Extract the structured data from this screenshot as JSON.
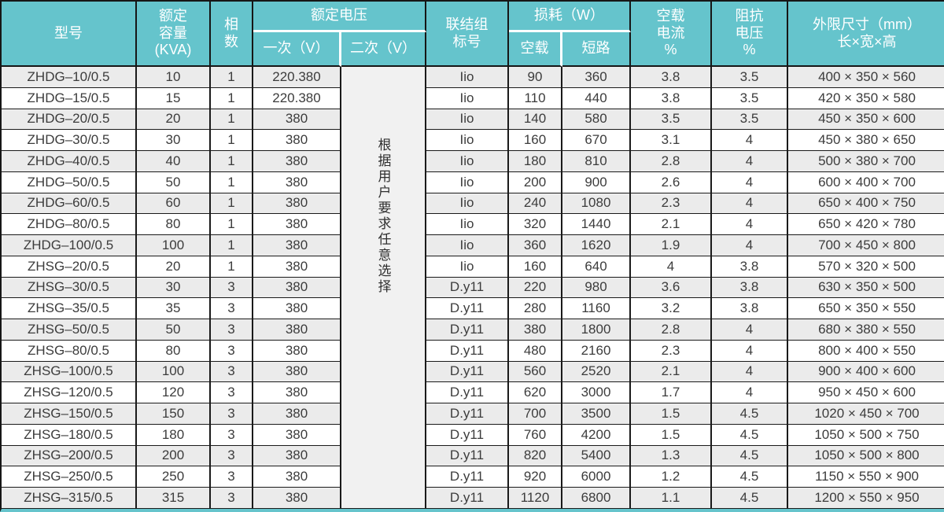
{
  "header": {
    "model": "型号",
    "capacity_lines": [
      "额定",
      "容量",
      "(KVA)"
    ],
    "phases_lines": [
      "相",
      "数"
    ],
    "voltage_group": "额定电压",
    "primary": "一次（V）",
    "secondary": "二次（V）",
    "connection_lines": [
      "联结组",
      "标号"
    ],
    "loss_group": "损耗（W）",
    "no_load": "空载",
    "short_circuit": "短路",
    "current_lines": [
      "空载",
      "电流",
      "%"
    ],
    "impedance_lines": [
      "阻抗",
      "电压",
      "%"
    ],
    "dims_lines": [
      "外限尺寸（mm）",
      "长×宽×高"
    ]
  },
  "secondary_note": "根据用户要求任意选择",
  "colors": {
    "header_bg": "#65c4cc",
    "header_text": "#ffffff",
    "row_alt_bg": "#ebebeb",
    "row_bg": "#ffffff",
    "border_dark": "#1a1a1a",
    "merged_bg": "#f1f1f1"
  },
  "rows": [
    [
      "ZHDG–10/0.5",
      "10",
      "1",
      "220.380",
      "Iio",
      "90",
      "360",
      "3.8",
      "3.5",
      "400 × 350 × 560"
    ],
    [
      "ZHDG–15/0.5",
      "15",
      "1",
      "220.380",
      "Iio",
      "110",
      "440",
      "3.8",
      "3.5",
      "420 × 350 × 580"
    ],
    [
      "ZHDG–20/0.5",
      "20",
      "1",
      "380",
      "Iio",
      "140",
      "580",
      "3.5",
      "3.5",
      "450 × 350 × 600"
    ],
    [
      "ZHDG–30/0.5",
      "30",
      "1",
      "380",
      "Iio",
      "160",
      "670",
      "3.1",
      "4",
      "450 × 380 × 650"
    ],
    [
      "ZHDG–40/0.5",
      "40",
      "1",
      "380",
      "Iio",
      "180",
      "810",
      "2.8",
      "4",
      "500 × 380 × 700"
    ],
    [
      "ZHDG–50/0.5",
      "50",
      "1",
      "380",
      "Iio",
      "200",
      "900",
      "2.6",
      "4",
      "600 × 400 × 700"
    ],
    [
      "ZHDG–60/0.5",
      "60",
      "1",
      "380",
      "Iio",
      "240",
      "1080",
      "2.3",
      "4",
      "650 × 400 × 750"
    ],
    [
      "ZHDG–80/0.5",
      "80",
      "1",
      "380",
      "Iio",
      "320",
      "1440",
      "2.1",
      "4",
      "650 × 420 × 780"
    ],
    [
      "ZHDG–100/0.5",
      "100",
      "1",
      "380",
      "Iio",
      "360",
      "1620",
      "1.9",
      "4",
      "700 × 450 × 800"
    ],
    [
      "ZHSG–20/0.5",
      "20",
      "1",
      "380",
      "Iio",
      "160",
      "640",
      "4",
      "3.8",
      "570 × 320 × 500"
    ],
    [
      "ZHSG–30/0.5",
      "30",
      "3",
      "380",
      "D.y11",
      "220",
      "980",
      "3.6",
      "3.8",
      "630 × 350 × 500"
    ],
    [
      "ZHSG–35/0.5",
      "35",
      "3",
      "380",
      "D.y11",
      "280",
      "1160",
      "3.2",
      "3.8",
      "650 × 350 × 550"
    ],
    [
      "ZHSG–50/0.5",
      "50",
      "3",
      "380",
      "D.y11",
      "380",
      "1800",
      "2.8",
      "4",
      "680 × 380 × 550"
    ],
    [
      "ZHSG–80/0.5",
      "80",
      "3",
      "380",
      "D.y11",
      "480",
      "2160",
      "2.3",
      "4",
      "800 × 400 × 550"
    ],
    [
      "ZHSG–100/0.5",
      "100",
      "3",
      "380",
      "D.y11",
      "560",
      "2520",
      "2.1",
      "4",
      "900 × 400 × 600"
    ],
    [
      "ZHSG–120/0.5",
      "120",
      "3",
      "380",
      "D.y11",
      "620",
      "3000",
      "1.7",
      "4",
      "950 × 450 × 600"
    ],
    [
      "ZHSG–150/0.5",
      "150",
      "3",
      "380",
      "D.y11",
      "700",
      "3500",
      "1.5",
      "4.5",
      "1020 × 450 × 700"
    ],
    [
      "ZHSG–180/0.5",
      "180",
      "3",
      "380",
      "D.y11",
      "760",
      "4200",
      "1.5",
      "4.5",
      "1050 × 500 × 750"
    ],
    [
      "ZHSG–200/0.5",
      "200",
      "3",
      "380",
      "D.y11",
      "820",
      "5400",
      "1.3",
      "4.5",
      "1050 × 500 × 800"
    ],
    [
      "ZHSG–250/0.5",
      "250",
      "3",
      "380",
      "D.y11",
      "920",
      "6000",
      "1.2",
      "4.5",
      "1150 × 550 × 900"
    ],
    [
      "ZHSG–315/0.5",
      "315",
      "3",
      "380",
      "D.y11",
      "1120",
      "6800",
      "1.1",
      "4.5",
      "1200 × 550 × 950"
    ]
  ]
}
